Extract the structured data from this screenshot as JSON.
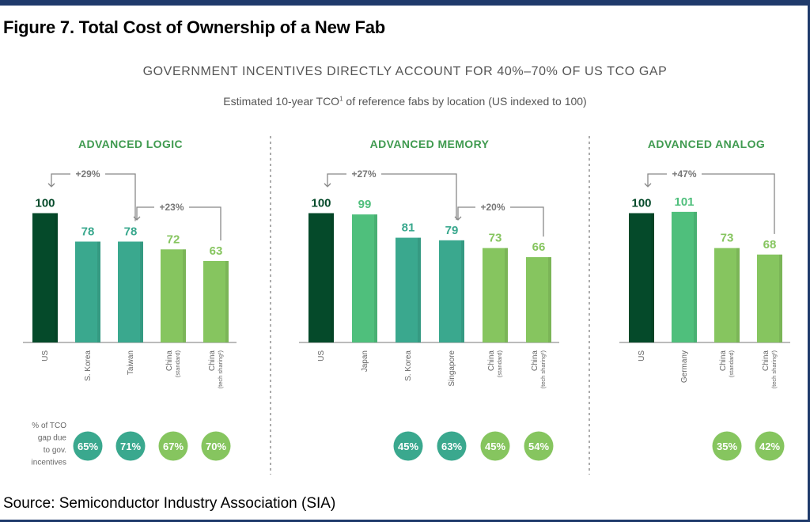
{
  "figure_title": "Figure 7. Total Cost of Ownership of a New Fab",
  "source": "Source: Semiconductor Industry Association (SIA)",
  "colors": {
    "us": "#054a2a",
    "teal": "#3aa88e",
    "mid_green": "#4fbf7c",
    "light_green": "#86c55f",
    "title_green": "#3f9a4f"
  },
  "chart_data": {
    "type": "bar",
    "title": "GOVERNMENT INCENTIVES DIRECTLY ACCOUNT FOR 40%–70% OF US TCO GAP",
    "subtitle": "Estimated 10-year TCO¹ of reference fabs by location (US indexed to 100)",
    "row_label": "% of TCO gap due to gov. incentives",
    "row_label_lines": [
      "% of TCO",
      "gap due",
      "to gov.",
      "incentives"
    ],
    "panels": [
      {
        "title": "ADVANCED LOGIC",
        "categories": [
          {
            "line1": "US",
            "line2": ""
          },
          {
            "line1": "S. Korea",
            "line2": ""
          },
          {
            "line1": "Taiwan",
            "line2": ""
          },
          {
            "line1": "China",
            "line2": "(standard)"
          },
          {
            "line1": "China",
            "line2": "(tech sharing²)"
          }
        ],
        "values": [
          100,
          78,
          78,
          72,
          63
        ],
        "incentive_pct": [
          null,
          "65%",
          "71%",
          "67%",
          "70%"
        ],
        "annotations": [
          {
            "text": "+29%",
            "from": 0,
            "to": 2
          },
          {
            "text": "+23%",
            "from": 2,
            "to": 4
          }
        ]
      },
      {
        "title": "ADVANCED MEMORY",
        "categories": [
          {
            "line1": "US",
            "line2": ""
          },
          {
            "line1": "Japan",
            "line2": ""
          },
          {
            "line1": "S. Korea",
            "line2": ""
          },
          {
            "line1": "Singapore",
            "line2": ""
          },
          {
            "line1": "China",
            "line2": "(standard)"
          },
          {
            "line1": "China",
            "line2": "(tech sharing²)"
          }
        ],
        "values": [
          100,
          99,
          81,
          79,
          73,
          66
        ],
        "incentive_pct": [
          null,
          null,
          "45%",
          "63%",
          "45%",
          "54%"
        ],
        "annotations": [
          {
            "text": "+27%",
            "from": 0,
            "to": 3
          },
          {
            "text": "+20%",
            "from": 3,
            "to": 5
          }
        ]
      },
      {
        "title": "ADVANCED ANALOG",
        "categories": [
          {
            "line1": "US",
            "line2": ""
          },
          {
            "line1": "Germany",
            "line2": ""
          },
          {
            "line1": "China",
            "line2": "(standard)"
          },
          {
            "line1": "China",
            "line2": "(tech sharing²)"
          }
        ],
        "values": [
          100,
          101,
          73,
          68
        ],
        "incentive_pct": [
          null,
          null,
          "35%",
          "42%"
        ],
        "annotations": [
          {
            "text": "+47%",
            "from": 0,
            "to": 3
          }
        ]
      }
    ]
  }
}
